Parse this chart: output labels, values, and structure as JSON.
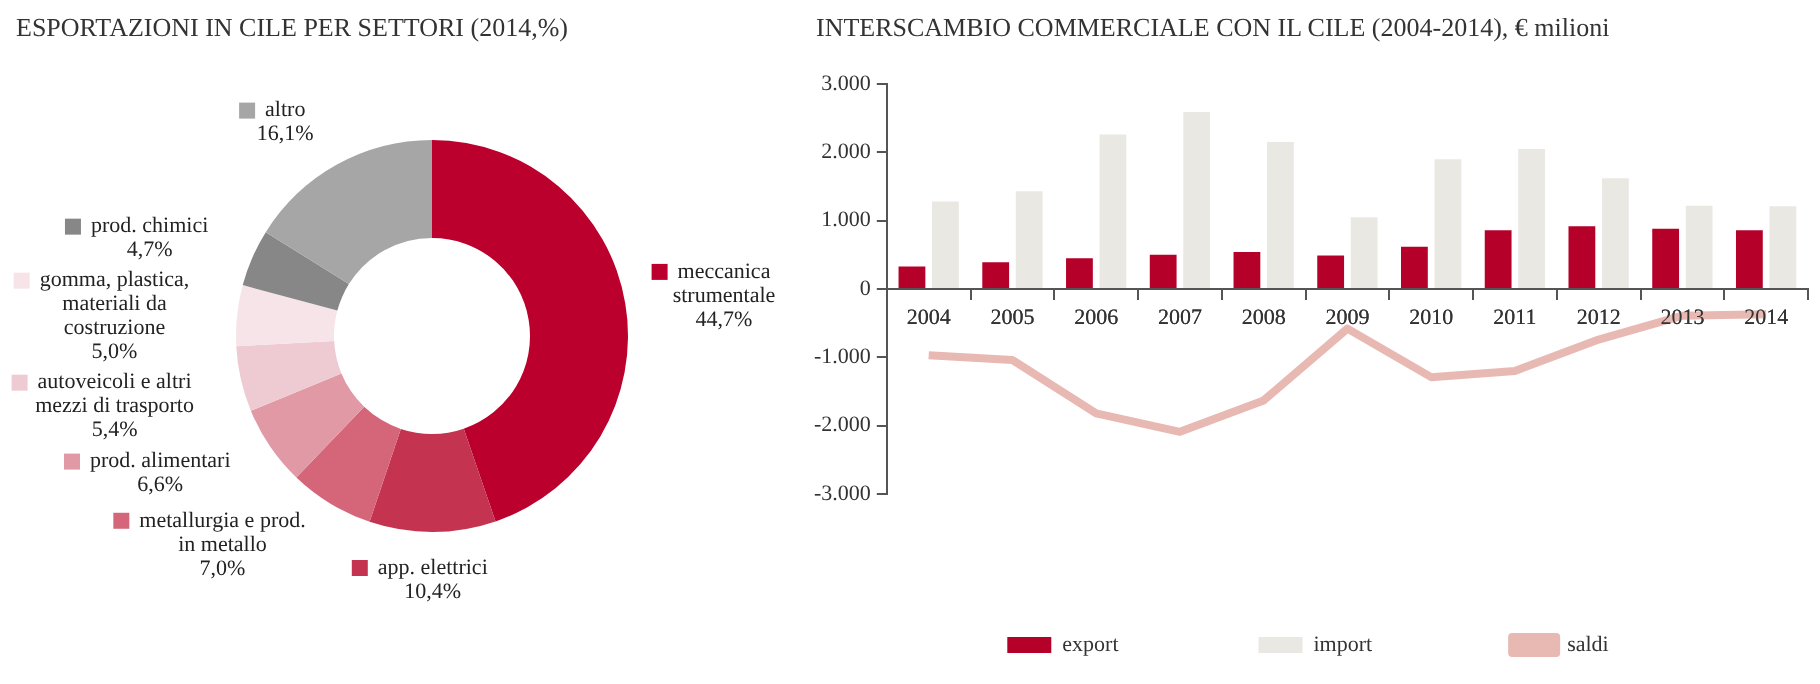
{
  "chart_data": [
    {
      "type": "donut",
      "title": "ESPORTAZIONI IN CILE PER SETTORI (2014,%)",
      "categories": [
        "meccanica strumentale",
        "app. elettrici",
        "metallurgia e prod. in metallo",
        "prod. alimentari",
        "autoveicoli e altri mezzi di trasporto",
        "gomma, plastica, materiali da costruzione",
        "prod. chimici",
        "altro"
      ],
      "values": [
        44.7,
        10.4,
        7.0,
        6.6,
        5.4,
        5.0,
        4.7,
        16.1
      ],
      "value_labels": [
        "44,7%",
        "10,4%",
        "7,0%",
        "6,6%",
        "5,4%",
        "5,0%",
        "4,7%",
        "16,1%"
      ],
      "colors": [
        "#bb002d",
        "#c43350",
        "#d56679",
        "#e199a6",
        "#eecbd2",
        "#f7e4e8",
        "#878787",
        "#a6a6a6"
      ],
      "legend": "left"
    },
    {
      "type": "bar",
      "title": "INTERSCAMBIO COMMERCIALE CON IL CILE (2004-2014), € milioni",
      "categories": [
        "2004",
        "2005",
        "2006",
        "2007",
        "2008",
        "2009",
        "2010",
        "2011",
        "2012",
        "2013",
        "2014"
      ],
      "series": [
        {
          "name": "export",
          "type": "bar",
          "color": "#b5002a",
          "values": [
            330,
            390,
            450,
            500,
            540,
            490,
            620,
            860,
            920,
            880,
            860
          ]
        },
        {
          "name": "import",
          "type": "bar",
          "color": "#eae8e3",
          "values": [
            1280,
            1430,
            2260,
            2590,
            2150,
            1050,
            1900,
            2050,
            1620,
            1220,
            1210
          ]
        },
        {
          "name": "saldi",
          "type": "line",
          "color": "#e8b8b3",
          "values": [
            -970,
            -1040,
            -1820,
            -2090,
            -1630,
            -580,
            -1290,
            -1200,
            -740,
            -390,
            -370
          ]
        }
      ],
      "ylim": [
        -3000,
        3000
      ],
      "yticks": [
        {
          "value": -3000,
          "label": "-3.000"
        },
        {
          "value": -2000,
          "label": "-2.000"
        },
        {
          "value": -1000,
          "label": "-1.000"
        },
        0,
        {
          "value": 1000,
          "label": "1.000"
        },
        {
          "value": 2000,
          "label": "2.000"
        },
        {
          "value": 3000,
          "label": "3.000"
        }
      ],
      "grid": false,
      "legend": "bottom",
      "marker": "none"
    }
  ]
}
